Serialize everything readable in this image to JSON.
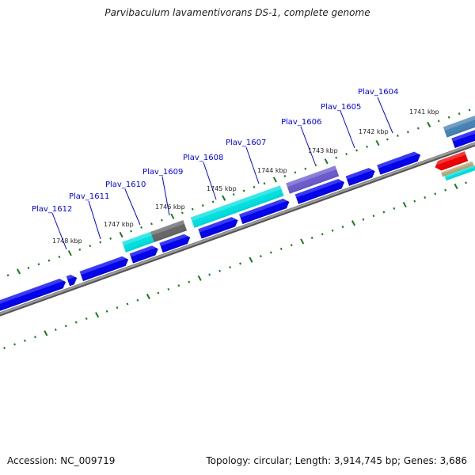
{
  "title": "Parvibaculum lavamentivorans DS-1, complete genome",
  "footer": {
    "accession": "Accession: NC_009719",
    "topology": "Topology: circular; Length: 3,914,745 bp; Genes: 3,686"
  },
  "colors": {
    "backbone": "#7a7a7a",
    "ticks": "#1a7a1a",
    "label": "#0000ff",
    "cds": "#0000ee"
  },
  "gene_labels": [
    "Plav_1604",
    "Plav_1605",
    "Plav_1606",
    "Plav_1607",
    "Plav_1608",
    "Plav_1609",
    "Plav_1610",
    "Plav_1611",
    "Plav_1612"
  ],
  "kbp_labels": [
    "1741 kbp",
    "1742 kbp",
    "1743 kbp",
    "1744 kbp",
    "1745 kbp",
    "1746 kbp",
    "1747 kbp",
    "1748 kbp"
  ],
  "ticks": {
    "start_bp": 1737000,
    "end_bp": 1752000,
    "minor_bp": 200,
    "major_bp": 1000
  },
  "features": [
    {
      "track": "outer",
      "shape": "arrow",
      "color": "#0000ee",
      "start": 1748243,
      "end": 1750451
    },
    {
      "track": "outer",
      "shape": "arrow",
      "color": "#0000ee",
      "start": 1748025,
      "end": 1748199
    },
    {
      "track": "outer",
      "shape": "arrow",
      "color": "#0000ee",
      "start": 1747022,
      "end": 1747938
    },
    {
      "track": "outer",
      "shape": "arrow",
      "color": "#0000ee",
      "start": 1746441,
      "end": 1746964
    },
    {
      "track": "outer",
      "shape": "arrow",
      "color": "#0000ee",
      "start": 1745816,
      "end": 1746383
    },
    {
      "track": "outer",
      "shape": "arrow",
      "color": "#0000ee",
      "start": 1744886,
      "end": 1745627
    },
    {
      "track": "outer",
      "shape": "arrow",
      "color": "#0000ee",
      "start": 1743884,
      "end": 1744828
    },
    {
      "track": "outer",
      "shape": "arrow",
      "color": "#0000ee",
      "start": 1742809,
      "end": 1743738
    },
    {
      "track": "outer",
      "shape": "arrow",
      "color": "#0000ee",
      "start": 1742213,
      "end": 1742750
    },
    {
      "track": "outer",
      "shape": "arrow",
      "color": "#0000ee",
      "start": 1741326,
      "end": 1742140
    },
    {
      "track": "outer",
      "shape": "arrow",
      "color": "#0000ee",
      "start": 1739700,
      "end": 1740687
    },
    {
      "track": "outer2",
      "shape": "box",
      "color": "#00e0e0",
      "start": 1746470,
      "end": 1747022
    },
    {
      "track": "outer2",
      "shape": "box",
      "color": "#666666",
      "start": 1745831,
      "end": 1746470
    },
    {
      "track": "outer2",
      "shape": "box",
      "color": "#00e0e0",
      "start": 1743942,
      "end": 1745686
    },
    {
      "track": "outer2",
      "shape": "box",
      "color": "#6a5acd",
      "start": 1742866,
      "end": 1743826
    },
    {
      "track": "outer2",
      "shape": "box",
      "color": "#4682b4",
      "start": 1739700,
      "end": 1740760
    },
    {
      "track": "inner",
      "shape": "arrow-rev",
      "color": "#ee0000",
      "start": 1740540,
      "end": 1741150
    },
    {
      "track": "inner2",
      "shape": "box",
      "color": "#b5aa78",
      "start": 1740470,
      "end": 1741080
    },
    {
      "track": "inner3",
      "shape": "box",
      "color": "#00e0e0",
      "start": 1740410,
      "end": 1741040
    }
  ]
}
